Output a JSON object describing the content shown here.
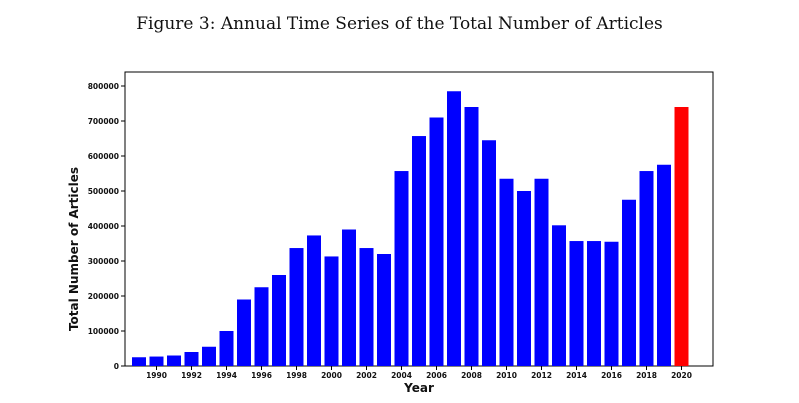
{
  "figure_title": "Figure 3: Annual Time Series of the Total Number of Articles",
  "chart_data": {
    "type": "bar",
    "xlabel": "Year",
    "ylabel": "Total Number of Articles",
    "categories": [
      1989,
      1990,
      1991,
      1992,
      1993,
      1994,
      1995,
      1996,
      1997,
      1998,
      1999,
      2000,
      2001,
      2002,
      2003,
      2004,
      2005,
      2006,
      2007,
      2008,
      2009,
      2010,
      2011,
      2012,
      2013,
      2014,
      2015,
      2016,
      2017,
      2018,
      2019,
      2020
    ],
    "values": [
      25000,
      27000,
      30000,
      40000,
      55000,
      100000,
      190000,
      225000,
      260000,
      337000,
      373000,
      313000,
      390000,
      337000,
      320000,
      557000,
      657000,
      710000,
      785000,
      740000,
      645000,
      535000,
      500000,
      535000,
      402000,
      357000,
      357000,
      355000,
      475000,
      557000,
      575000,
      740000
    ],
    "bar_colors": [
      "#0000ff",
      "#0000ff",
      "#0000ff",
      "#0000ff",
      "#0000ff",
      "#0000ff",
      "#0000ff",
      "#0000ff",
      "#0000ff",
      "#0000ff",
      "#0000ff",
      "#0000ff",
      "#0000ff",
      "#0000ff",
      "#0000ff",
      "#0000ff",
      "#0000ff",
      "#0000ff",
      "#0000ff",
      "#0000ff",
      "#0000ff",
      "#0000ff",
      "#0000ff",
      "#0000ff",
      "#0000ff",
      "#0000ff",
      "#0000ff",
      "#0000ff",
      "#0000ff",
      "#0000ff",
      "#0000ff",
      "#ff0000"
    ],
    "ylim": [
      0,
      840000
    ],
    "yticks": [
      0,
      100000,
      200000,
      300000,
      400000,
      500000,
      600000,
      700000,
      800000
    ],
    "ytick_labels": [
      "0",
      "100000",
      "200000",
      "300000",
      "400000",
      "500000",
      "600000",
      "700000",
      "800000"
    ],
    "xticks": [
      1990,
      1992,
      1994,
      1996,
      1998,
      2000,
      2002,
      2004,
      2006,
      2008,
      2010,
      2012,
      2014,
      2016,
      2018,
      2020
    ],
    "xtick_labels": [
      "1990",
      "1992",
      "1994",
      "1996",
      "1998",
      "2000",
      "2002",
      "2004",
      "2006",
      "2008",
      "2010",
      "2012",
      "2014",
      "2016",
      "2018",
      "2020"
    ],
    "grid": false,
    "legend": "none"
  }
}
